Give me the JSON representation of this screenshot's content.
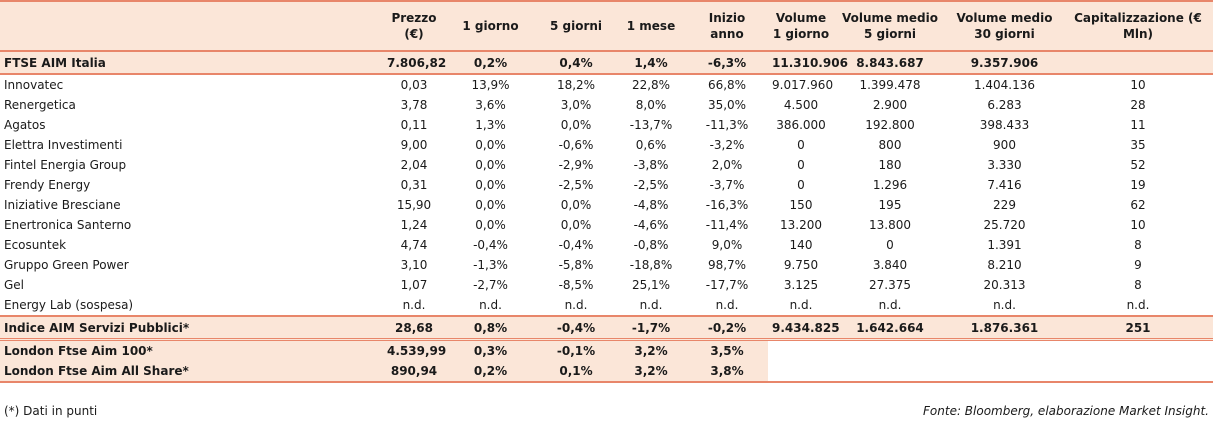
{
  "headers": [
    "",
    "Prezzo (€)",
    "1 giorno",
    "5 giorni",
    "1 mese",
    "Inizio anno",
    "Volume 1 giorno",
    "Volume medio 5 giorni",
    "Volume medio 30 giorni",
    "Capitalizzazione (€ Mln)"
  ],
  "index_row": [
    "FTSE AIM Italia",
    "7.806,82",
    "0,2%",
    "0,4%",
    "1,4%",
    "-6,3%",
    "11.310.906",
    "8.843.687",
    "9.357.906",
    ""
  ],
  "rows": [
    [
      "Innovatec",
      "0,03",
      "13,9%",
      "18,2%",
      "22,8%",
      "66,8%",
      "9.017.960",
      "1.399.478",
      "1.404.136",
      "10"
    ],
    [
      "Renergetica",
      "3,78",
      "3,6%",
      "3,0%",
      "8,0%",
      "35,0%",
      "4.500",
      "2.900",
      "6.283",
      "28"
    ],
    [
      "Agatos",
      "0,11",
      "1,3%",
      "0,0%",
      "-13,7%",
      "-11,3%",
      "386.000",
      "192.800",
      "398.433",
      "11"
    ],
    [
      "Elettra Investimenti",
      "9,00",
      "0,0%",
      "-0,6%",
      "0,6%",
      "-3,2%",
      "0",
      "800",
      "900",
      "35"
    ],
    [
      "Fintel Energia Group",
      "2,04",
      "0,0%",
      "-2,9%",
      "-3,8%",
      "2,0%",
      "0",
      "180",
      "3.330",
      "52"
    ],
    [
      "Frendy Energy",
      "0,31",
      "0,0%",
      "-2,5%",
      "-2,5%",
      "-3,7%",
      "0",
      "1.296",
      "7.416",
      "19"
    ],
    [
      "Iniziative Bresciane",
      "15,90",
      "0,0%",
      "0,0%",
      "-4,8%",
      "-16,3%",
      "150",
      "195",
      "229",
      "62"
    ],
    [
      "Enertronica Santerno",
      "1,24",
      "0,0%",
      "0,0%",
      "-4,6%",
      "-11,4%",
      "13.200",
      "13.800",
      "25.720",
      "10"
    ],
    [
      "Ecosuntek",
      "4,74",
      "-0,4%",
      "-0,4%",
      "-0,8%",
      "9,0%",
      "140",
      "0",
      "1.391",
      "8"
    ],
    [
      "Gruppo Green Power",
      "3,10",
      "-1,3%",
      "-5,8%",
      "-18,8%",
      "98,7%",
      "9.750",
      "3.840",
      "8.210",
      "9"
    ],
    [
      "Gel",
      "1,07",
      "-2,7%",
      "-8,5%",
      "25,1%",
      "-17,7%",
      "3.125",
      "27.375",
      "20.313",
      "8"
    ],
    [
      "Energy Lab (sospesa)",
      "n.d.",
      "n.d.",
      "n.d.",
      "n.d.",
      "n.d.",
      "n.d.",
      "n.d.",
      "n.d.",
      "n.d."
    ]
  ],
  "summary_row": [
    "Indice AIM Servizi Pubblici*",
    "28,68",
    "0,8%",
    "-0,4%",
    "-1,7%",
    "-0,2%",
    "9.434.825",
    "1.642.664",
    "1.876.361",
    "251"
  ],
  "ref_rows": [
    [
      "London Ftse Aim 100*",
      "4.539,99",
      "0,3%",
      "-0,1%",
      "3,2%",
      "3,5%"
    ],
    [
      "London Ftse Aim All Share*",
      "890,94",
      "0,2%",
      "0,1%",
      "3,2%",
      "3,8%"
    ]
  ],
  "footnote": "(*) Dati in punti",
  "source": "Fonte: Bloomberg, elaborazione Market Insight."
}
